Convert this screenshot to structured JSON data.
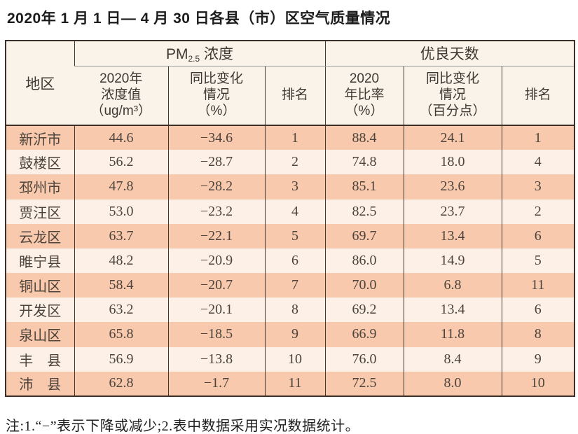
{
  "title": "2020年 1 月 1 日— 4 月 30 日各县（市）区空气质量情况",
  "footnote": "注:1.“−”表示下降或减少;2.表中数据采用实况数据统计。",
  "colors": {
    "row_salmon": "#f8c9ad",
    "row_light": "#fdf0e7",
    "header_bg": "#faf3ea",
    "border_dark": "#3c2f28",
    "border_gray": "#9b9b9b"
  },
  "table": {
    "group_headers": {
      "region": "地区",
      "pm25_prefix": "PM",
      "pm25_sub": "2.5",
      "pm25_suffix": " 浓度",
      "good_days": "优良天数"
    },
    "sub_headers": {
      "pm_value": "2020年\n浓度值\n（ug/m³）",
      "pm_change": "同比变化\n情况\n（%）",
      "pm_rank": "排名",
      "good_rate": "2020\n年比率\n（%）",
      "good_change": "同比变化\n情况\n（百分点）",
      "good_rank": "排名"
    },
    "column_order": [
      "region",
      "pm",
      "pm_change",
      "pm_rank",
      "rate",
      "rate_change",
      "rank"
    ],
    "rows": [
      {
        "region": "新沂市",
        "pm": "44.6",
        "pm_change": "−34.6",
        "pm_rank": "1",
        "rate": "88.4",
        "rate_change": "24.1",
        "rank": "1"
      },
      {
        "region": "鼓楼区",
        "pm": "56.2",
        "pm_change": "−28.7",
        "pm_rank": "2",
        "rate": "74.8",
        "rate_change": "18.0",
        "rank": "4"
      },
      {
        "region": "邳州市",
        "pm": "47.8",
        "pm_change": "−28.2",
        "pm_rank": "3",
        "rate": "85.1",
        "rate_change": "23.6",
        "rank": "3"
      },
      {
        "region": "贾汪区",
        "pm": "53.0",
        "pm_change": "−23.2",
        "pm_rank": "4",
        "rate": "82.5",
        "rate_change": "23.7",
        "rank": "2"
      },
      {
        "region": "云龙区",
        "pm": "63.7",
        "pm_change": "−22.1",
        "pm_rank": "5",
        "rate": "69.7",
        "rate_change": "13.4",
        "rank": "6"
      },
      {
        "region": "睢宁县",
        "pm": "48.2",
        "pm_change": "−20.9",
        "pm_rank": "6",
        "rate": "86.0",
        "rate_change": "14.9",
        "rank": "5"
      },
      {
        "region": "铜山区",
        "pm": "58.4",
        "pm_change": "−20.7",
        "pm_rank": "7",
        "rate": "70.0",
        "rate_change": "6.8",
        "rank": "11"
      },
      {
        "region": "开发区",
        "pm": "63.2",
        "pm_change": "−20.1",
        "pm_rank": "8",
        "rate": "69.2",
        "rate_change": "13.4",
        "rank": "6"
      },
      {
        "region": "泉山区",
        "pm": "65.8",
        "pm_change": "−18.5",
        "pm_rank": "9",
        "rate": "66.9",
        "rate_change": "11.8",
        "rank": "8"
      },
      {
        "region": "丰　县",
        "pm": "56.9",
        "pm_change": "−13.8",
        "pm_rank": "10",
        "rate": "76.0",
        "rate_change": "8.4",
        "rank": "9"
      },
      {
        "region": "沛　县",
        "pm": "62.8",
        "pm_change": "−1.7",
        "pm_rank": "11",
        "rate": "72.5",
        "rate_change": "8.0",
        "rank": "10"
      }
    ]
  }
}
